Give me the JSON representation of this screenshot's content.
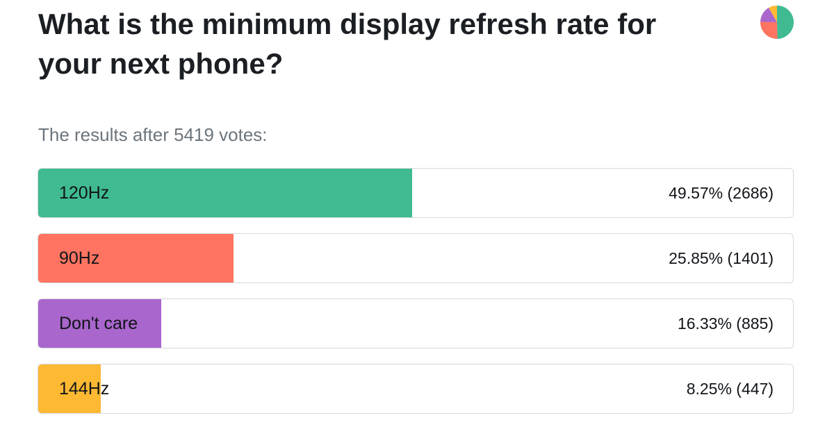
{
  "page": {
    "title": "What is the minimum display refresh rate for your next phone?",
    "subtitle": "The results after 5419 votes:"
  },
  "chart_data": {
    "type": "bar",
    "orientation": "horizontal",
    "total_votes": 5419,
    "categories": [
      "120Hz",
      "90Hz",
      "Don't care",
      "144Hz"
    ],
    "values": [
      49.57,
      25.85,
      16.33,
      8.25
    ],
    "votes": [
      2686,
      1401,
      885,
      447
    ],
    "value_labels": [
      "49.57% (2686)",
      "25.85% (1401)",
      "16.33% (885)",
      "8.25% (447)"
    ],
    "colors": [
      "#3fba91",
      "#fe7461",
      "#a966cc",
      "#feb933"
    ],
    "xlim": [
      0,
      100
    ]
  }
}
